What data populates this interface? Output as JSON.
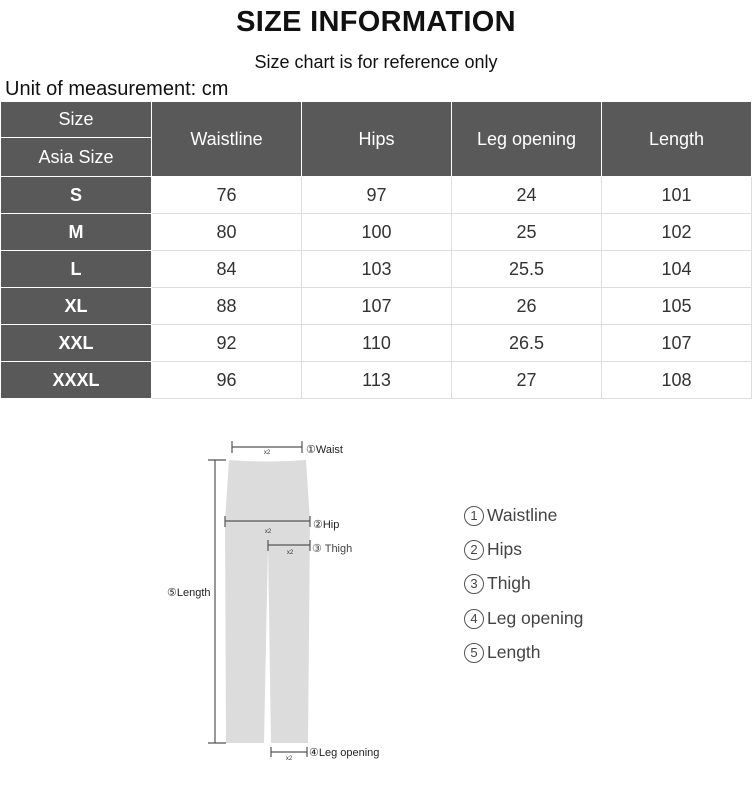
{
  "title": "SIZE INFORMATION",
  "subtitle": "Size chart is for reference only",
  "unit": "Unit of measurement: cm",
  "table": {
    "header": {
      "size": "Size",
      "asia_size": "Asia Size",
      "columns": [
        "Waistline",
        "Hips",
        "Leg opening",
        "Length"
      ]
    },
    "rows": [
      {
        "size": "S",
        "values": [
          "76",
          "97",
          "24",
          "101"
        ]
      },
      {
        "size": "M",
        "values": [
          "80",
          "100",
          "25",
          "102"
        ]
      },
      {
        "size": "L",
        "values": [
          "84",
          "103",
          "25.5",
          "104"
        ]
      },
      {
        "size": "XL",
        "values": [
          "88",
          "107",
          "26",
          "105"
        ]
      },
      {
        "size": "XXL",
        "values": [
          "92",
          "110",
          "26.5",
          "107"
        ]
      },
      {
        "size": "XXXL",
        "values": [
          "96",
          "113",
          "27",
          "108"
        ]
      }
    ]
  },
  "diagram": {
    "multiplier": "x2",
    "labels": {
      "waist": "①Waist",
      "hip": "②Hip",
      "thigh": "③ Thigh",
      "length": "⑤Length",
      "leg_opening": "④Leg opening"
    }
  },
  "legend": [
    {
      "num": "1",
      "label": "Waistline"
    },
    {
      "num": "2",
      "label": "Hips"
    },
    {
      "num": "3",
      "label": "Thigh"
    },
    {
      "num": "4",
      "label": "Leg opening"
    },
    {
      "num": "5",
      "label": "Length"
    }
  ],
  "colors": {
    "header_bg": "#595959",
    "pants_fill": "#dcdcdc"
  }
}
